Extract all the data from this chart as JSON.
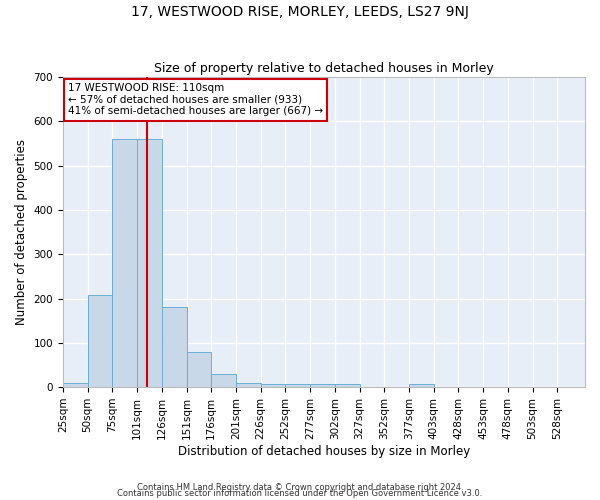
{
  "title": "17, WESTWOOD RISE, MORLEY, LEEDS, LS27 9NJ",
  "subtitle": "Size of property relative to detached houses in Morley",
  "xlabel": "Distribution of detached houses by size in Morley",
  "ylabel": "Number of detached properties",
  "bar_color": "#c8d8e8",
  "bar_edge_color": "#6baed6",
  "plot_bg_color": "#e8eef8",
  "fig_bg_color": "#ffffff",
  "grid_color": "#ffffff",
  "vline_x": 110,
  "vline_color": "#cc0000",
  "bin_start": 25,
  "bin_width": 25,
  "bar_heights": [
    10,
    207,
    560,
    560,
    180,
    80,
    30,
    10,
    8,
    8,
    8,
    8,
    0,
    0,
    8,
    0,
    0,
    0,
    0,
    0
  ],
  "xlim": [
    25,
    553
  ],
  "ylim": [
    0,
    700
  ],
  "yticks": [
    0,
    100,
    200,
    300,
    400,
    500,
    600,
    700
  ],
  "xtick_labels": [
    "25sqm",
    "50sqm",
    "75sqm",
    "101sqm",
    "126sqm",
    "151sqm",
    "176sqm",
    "201sqm",
    "226sqm",
    "252sqm",
    "277sqm",
    "302sqm",
    "327sqm",
    "352sqm",
    "377sqm",
    "403sqm",
    "428sqm",
    "453sqm",
    "478sqm",
    "503sqm",
    "528sqm"
  ],
  "annotation_text": "17 WESTWOOD RISE: 110sqm\n← 57% of detached houses are smaller (933)\n41% of semi-detached houses are larger (667) →",
  "annotation_box_color": "#ffffff",
  "annotation_box_edge_color": "#cc0000",
  "annotation_fontsize": 7.5,
  "footer_line1": "Contains HM Land Registry data © Crown copyright and database right 2024.",
  "footer_line2": "Contains public sector information licensed under the Open Government Licence v3.0.",
  "title_fontsize": 10,
  "subtitle_fontsize": 9,
  "axis_label_fontsize": 8.5,
  "tick_fontsize": 7.5
}
